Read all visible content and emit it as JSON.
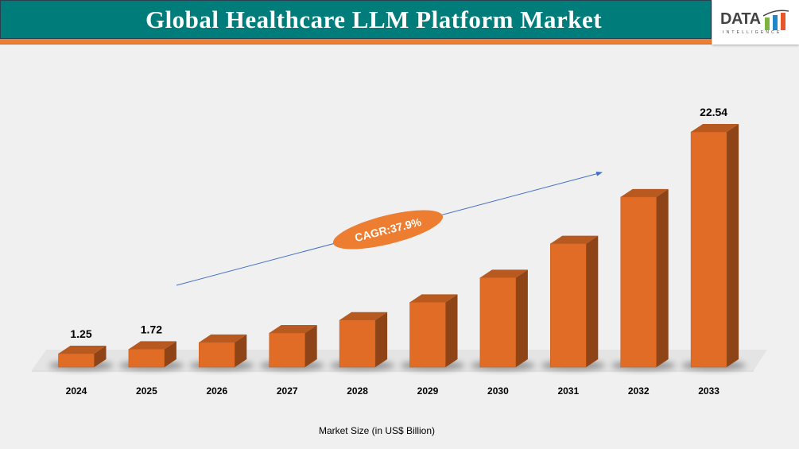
{
  "header": {
    "title": "Global Healthcare LLM Platform Market"
  },
  "logo": {
    "text": "DATA",
    "subtext": "INTELLIGENCE"
  },
  "colors": {
    "header_bg": "#007c7a",
    "stripe": "#ed7d31",
    "bar_front": "#e06c26",
    "bar_top": "#b85a1f",
    "bar_side": "#8f4417",
    "cagr_bg": "#ed7d31",
    "arrow": "#4472c4"
  },
  "chart_data": {
    "type": "bar",
    "style": "3d-column",
    "categories": [
      "2024",
      "2025",
      "2026",
      "2027",
      "2028",
      "2029",
      "2030",
      "2031",
      "2032",
      "2033"
    ],
    "values": [
      1.25,
      1.72,
      2.37,
      3.27,
      4.51,
      6.22,
      8.58,
      11.83,
      16.31,
      22.54
    ],
    "data_labels": [
      "1.25",
      "1.72",
      "",
      "",
      "",
      "",
      "",
      "",
      "",
      "22.54"
    ],
    "xlabel": "Market Size (in US$ Billion)",
    "ylabel": "",
    "grid": false,
    "legend": "none",
    "annotation": "CAGR:37.9%"
  }
}
